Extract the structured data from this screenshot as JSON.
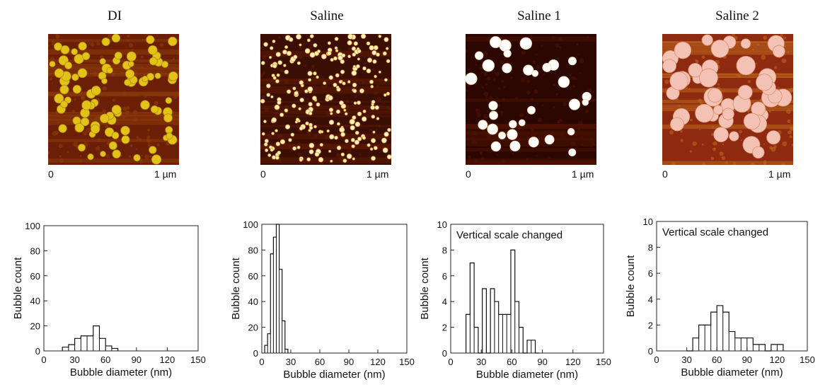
{
  "panels": [
    {
      "title": "DI",
      "scale_start": "0",
      "scale_end": "1 µm",
      "afm_colors": {
        "bg": "#6b1f06",
        "mid": "#8c3a0c",
        "dot": "#e3c21a",
        "dot_edge": "#b0900c"
      }
    },
    {
      "title": "Saline",
      "scale_start": "0",
      "scale_end": "1 µm",
      "afm_colors": {
        "bg": "#3a0e02",
        "mid": "#5c1a04",
        "dot": "#fff2c8",
        "dot_edge": "#e09a2a"
      }
    },
    {
      "title": "Saline 1",
      "scale_start": "0",
      "scale_end": "1 µm",
      "afm_colors": {
        "bg": "#2c0701",
        "mid": "#4f1203",
        "dot": "#ffffff",
        "dot_edge": "#f0d0a0"
      }
    },
    {
      "title": "Saline 2",
      "scale_start": "0",
      "scale_end": "1 µm",
      "afm_colors": {
        "bg": "#8e2a10",
        "mid": "#b9661e",
        "dot": "#f4c2b4",
        "dot_edge": "#d89070"
      }
    }
  ],
  "chart_data": [
    {
      "type": "bar",
      "subtype": "histogram",
      "title": "DI",
      "xlabel": "Bubble diameter (nm)",
      "ylabel": "Bubble count",
      "xlim": [
        0,
        150
      ],
      "ylim": [
        0,
        100
      ],
      "xticks": [
        0,
        30,
        60,
        90,
        120,
        150
      ],
      "yticks": [
        0,
        20,
        40,
        60,
        80,
        100
      ],
      "annotation": "",
      "bin_width": 6,
      "bins": [
        [
          18,
          3
        ],
        [
          24,
          5
        ],
        [
          30,
          10
        ],
        [
          36,
          12
        ],
        [
          42,
          12
        ],
        [
          48,
          20
        ],
        [
          54,
          10
        ],
        [
          60,
          4
        ],
        [
          66,
          2
        ]
      ]
    },
    {
      "type": "bar",
      "subtype": "histogram",
      "title": "Saline",
      "xlabel": "Bubble diameter (nm)",
      "ylabel": "Bubble count",
      "xlim": [
        0,
        150
      ],
      "ylim": [
        0,
        100
      ],
      "xticks": [
        0,
        30,
        60,
        90,
        120,
        150
      ],
      "yticks": [
        0,
        20,
        40,
        60,
        80,
        100
      ],
      "annotation": "",
      "bin_width": 3,
      "bins": [
        [
          3,
          6
        ],
        [
          6,
          15
        ],
        [
          9,
          77
        ],
        [
          12,
          90
        ],
        [
          15,
          100
        ],
        [
          18,
          65
        ],
        [
          21,
          25
        ],
        [
          24,
          3
        ]
      ]
    },
    {
      "type": "bar",
      "subtype": "histogram",
      "title": "Saline 1",
      "xlabel": "Bubble diameter (nm)",
      "ylabel": "Bubble count",
      "xlim": [
        0,
        150
      ],
      "ylim": [
        0,
        10
      ],
      "xticks": [
        0,
        30,
        60,
        90,
        120,
        150
      ],
      "yticks": [
        0,
        2,
        4,
        6,
        8,
        10
      ],
      "annotation": "Vertical scale changed",
      "bin_width": 4,
      "bins": [
        [
          15,
          3
        ],
        [
          19,
          7
        ],
        [
          23,
          2
        ],
        [
          27,
          0
        ],
        [
          31,
          5
        ],
        [
          35,
          0
        ],
        [
          39,
          5
        ],
        [
          43,
          4
        ],
        [
          47,
          3
        ],
        [
          51,
          3
        ],
        [
          55,
          3
        ],
        [
          59,
          8
        ],
        [
          63,
          4
        ],
        [
          67,
          2
        ],
        [
          71,
          0
        ],
        [
          75,
          1
        ],
        [
          79,
          1
        ],
        [
          83,
          0
        ]
      ]
    },
    {
      "type": "bar",
      "subtype": "histogram",
      "title": "Saline 2",
      "xlabel": "Bubble diameter (nm)",
      "ylabel": "Bubble count",
      "xlim": [
        0,
        150
      ],
      "ylim": [
        0,
        10
      ],
      "xticks": [
        0,
        30,
        60,
        90,
        120,
        150
      ],
      "yticks": [
        0,
        2,
        4,
        6,
        8,
        10
      ],
      "annotation": "Vertical scale changed",
      "bin_width": 6,
      "bins": [
        [
          30,
          0
        ],
        [
          36,
          1
        ],
        [
          42,
          2
        ],
        [
          48,
          2
        ],
        [
          54,
          3
        ],
        [
          60,
          3.5
        ],
        [
          66,
          3
        ],
        [
          72,
          1.5
        ],
        [
          78,
          1
        ],
        [
          84,
          1
        ],
        [
          90,
          1
        ],
        [
          96,
          0.5
        ],
        [
          102,
          0.5
        ],
        [
          108,
          0
        ],
        [
          114,
          0.5
        ],
        [
          120,
          0.5
        ]
      ]
    }
  ]
}
